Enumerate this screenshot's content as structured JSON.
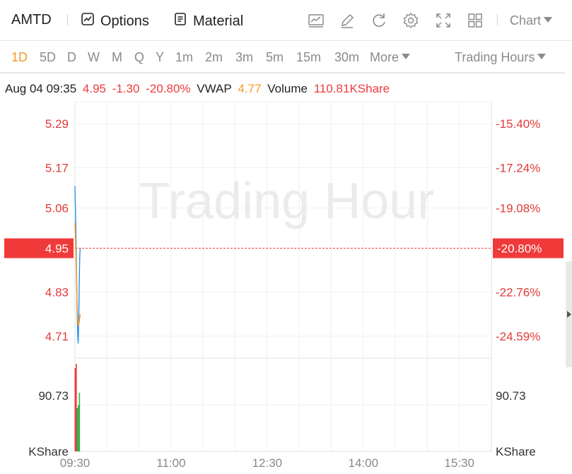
{
  "toolbar": {
    "symbol": "AMTD",
    "options_label": "Options",
    "material_label": "Material",
    "chart_select_label": "Chart",
    "icons": [
      "indicator-icon",
      "draw-icon",
      "reset-icon",
      "settings-icon",
      "fullscreen-icon",
      "layout-icon"
    ]
  },
  "periods": [
    "1D",
    "5D",
    "D",
    "W",
    "M",
    "Q",
    "Y",
    "1m",
    "2m",
    "3m",
    "5m",
    "15m",
    "30m"
  ],
  "active_period": "1D",
  "more_label": "More",
  "hours_label": "Trading Hours",
  "info": {
    "time": "Aug 04 09:35",
    "price": "4.95",
    "change": "-1.30",
    "change_pct": "-20.80%",
    "vwap_label": "VWAP",
    "vwap": "4.77",
    "volume_label": "Volume",
    "volume": "110.81KShare"
  },
  "colors": {
    "price_line": "#2f8fe8",
    "vwap_line": "#f59a23",
    "down": "#f03a3a",
    "up": "#2db34a",
    "grid": "#efefef",
    "watermark": "#ebebeb",
    "axis_text": "#e23a3a",
    "neutral_text": "#333333"
  },
  "chart_data": {
    "type": "line",
    "watermark": "Trading Hour",
    "price_axis": {
      "ticks": [
        5.29,
        5.17,
        5.06,
        4.83,
        4.71
      ],
      "tick_labels": [
        "5.29",
        "5.17",
        "5.06",
        "4.83",
        "4.71"
      ],
      "current": 4.95,
      "current_label": "4.95",
      "range": [
        4.65,
        5.35
      ]
    },
    "pct_axis": {
      "tick_labels": [
        "-15.40%",
        "-17.24%",
        "-19.08%",
        "-22.76%",
        "-24.59%"
      ],
      "current_label": "-20.80%"
    },
    "time_axis": {
      "labels": [
        "09:30",
        "11:00",
        "12:30",
        "14:00",
        "15:30"
      ],
      "range_minutes": [
        0,
        390
      ]
    },
    "series": [
      {
        "name": "Price",
        "points": [
          [
            0,
            5.12
          ],
          [
            0.5,
            5.05
          ],
          [
            1,
            4.98
          ],
          [
            1.5,
            4.88
          ],
          [
            2,
            4.78
          ],
          [
            2.5,
            4.72
          ],
          [
            3,
            4.69
          ],
          [
            3.5,
            4.74
          ],
          [
            4,
            4.85
          ],
          [
            4.5,
            4.93
          ],
          [
            5,
            4.95
          ]
        ]
      },
      {
        "name": "VWAP",
        "points": [
          [
            0,
            5.02
          ],
          [
            0.5,
            4.98
          ],
          [
            1,
            4.93
          ],
          [
            1.5,
            4.86
          ],
          [
            2,
            4.8
          ],
          [
            2.5,
            4.76
          ],
          [
            3,
            4.74
          ],
          [
            3.5,
            4.74
          ],
          [
            4,
            4.75
          ],
          [
            4.5,
            4.76
          ],
          [
            5,
            4.77
          ]
        ]
      }
    ],
    "volume": {
      "tick_label": "90.73",
      "tick_value": 90.73,
      "unit_label": "KShare",
      "max": 142,
      "bars": [
        {
          "t": 0,
          "v": 135,
          "dir": "down"
        },
        {
          "t": 1,
          "v": 142,
          "dir": "down"
        },
        {
          "t": 2,
          "v": 70,
          "dir": "up"
        },
        {
          "t": 3,
          "v": 75,
          "dir": "up"
        },
        {
          "t": 4,
          "v": 95,
          "dir": "up"
        }
      ]
    }
  }
}
